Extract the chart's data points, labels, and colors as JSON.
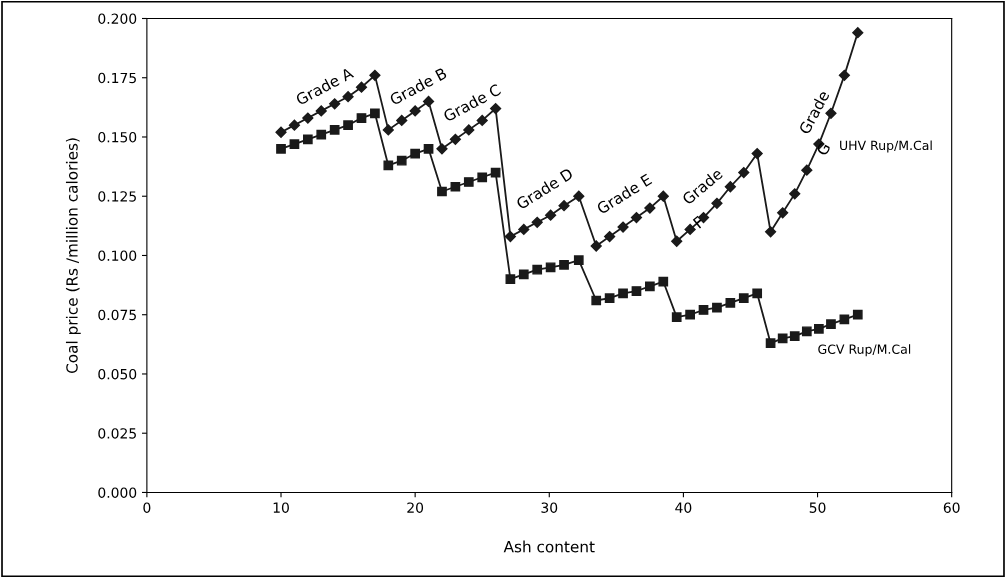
{
  "chart_data": {
    "type": "line",
    "xlabel": "Ash content",
    "ylabel": "Coal price (Rs /million calories)",
    "xlim": [
      0,
      60
    ],
    "xticks": [
      0,
      10,
      20,
      30,
      40,
      50,
      60
    ],
    "ylim": [
      0,
      0.2
    ],
    "yticks": [
      {
        "value": 0,
        "label": "0.000"
      },
      {
        "value": 0.025,
        "label": "0.025"
      },
      {
        "value": 0.05,
        "label": "0.050"
      },
      {
        "value": 0.075,
        "label": "0.075"
      },
      {
        "value": 0.1,
        "label": "0.100"
      },
      {
        "value": 0.125,
        "label": "0.125"
      },
      {
        "value": 0.15,
        "label": "0.150"
      },
      {
        "value": 0.175,
        "label": "0.175"
      },
      {
        "value": 0.2,
        "label": "0.200"
      }
    ],
    "grid": false,
    "legend": false,
    "line_style": "solid",
    "series": [
      {
        "name": "UHV Rup/M.Cal",
        "color": "#1a1a1a",
        "marker": "diamond",
        "x": [
          10,
          11,
          12,
          13,
          14,
          15,
          16,
          17,
          18,
          19,
          20,
          21,
          22,
          23,
          24,
          25,
          26,
          27.1,
          28.1,
          29.1,
          30.1,
          31.1,
          32.2,
          33.5,
          34.5,
          35.5,
          36.5,
          37.5,
          38.5,
          39.5,
          40.5,
          41.5,
          42.5,
          43.5,
          44.5,
          45.5,
          46.5,
          47.4,
          48.3,
          49.2,
          50.1,
          51,
          52,
          53
        ],
        "values": [
          0.152,
          0.155,
          0.158,
          0.161,
          0.164,
          0.167,
          0.171,
          0.176,
          0.153,
          0.157,
          0.161,
          0.165,
          0.145,
          0.149,
          0.153,
          0.157,
          0.162,
          0.108,
          0.111,
          0.114,
          0.117,
          0.121,
          0.125,
          0.104,
          0.108,
          0.112,
          0.116,
          0.12,
          0.125,
          0.106,
          0.111,
          0.116,
          0.122,
          0.129,
          0.135,
          0.143,
          0.11,
          0.118,
          0.126,
          0.136,
          0.147,
          0.16,
          0.176,
          0.194
        ]
      },
      {
        "name": "GCV Rup/M.Cal",
        "color": "#1a1a1a",
        "marker": "square",
        "x": [
          10,
          11,
          12,
          13,
          14,
          15,
          16,
          17,
          18,
          19,
          20,
          21,
          22,
          23,
          24,
          25,
          26,
          27.1,
          28.1,
          29.1,
          30.1,
          31.1,
          32.2,
          33.5,
          34.5,
          35.5,
          36.5,
          37.5,
          38.5,
          39.5,
          40.5,
          41.5,
          42.5,
          43.5,
          44.5,
          45.5,
          46.5,
          47.4,
          48.3,
          49.2,
          50.1,
          51,
          52,
          53
        ],
        "values": [
          0.145,
          0.147,
          0.149,
          0.151,
          0.153,
          0.155,
          0.158,
          0.16,
          0.138,
          0.14,
          0.143,
          0.145,
          0.127,
          0.129,
          0.131,
          0.133,
          0.135,
          0.09,
          0.092,
          0.094,
          0.095,
          0.096,
          0.098,
          0.081,
          0.082,
          0.084,
          0.085,
          0.087,
          0.089,
          0.074,
          0.075,
          0.077,
          0.078,
          0.08,
          0.082,
          0.084,
          0.063,
          0.065,
          0.066,
          0.068,
          0.069,
          0.071,
          0.073,
          0.075
        ]
      }
    ],
    "annotations": [
      "Grade A",
      "Grade B",
      "Grade C",
      "Grade D",
      "Grade E",
      "Grade",
      "F",
      "Grade",
      "G"
    ]
  }
}
